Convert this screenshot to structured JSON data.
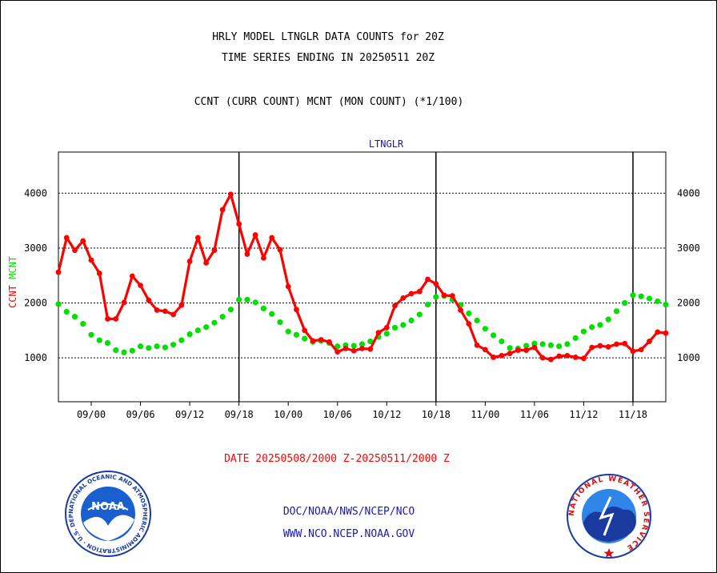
{
  "header": {
    "title_line1": "HRLY MODEL LTNGLR DATA COUNTS for 20Z",
    "title_line2": "TIME SERIES ENDING IN 20250511 20Z",
    "subtitle": "CCNT (CURR COUNT) MCNT (MON COUNT) (*1/100)"
  },
  "footer": {
    "date_range": "DATE 20250508/2000 Z-20250511/2000 Z",
    "credit": "DOC/NOAA/NWS/NCEP/NCO",
    "website": "WWW.NCO.NCEP.NOAA.GOV"
  },
  "logos": {
    "noaa_text": "NOAA",
    "noaa_ring": "NATIONAL OCEANIC AND ATMOSPHERIC ADMINISTRATION · U.S. DEPARTMENT OF COMMERCE ·",
    "nws_ring": "NATIONAL WEATHER SERVICE"
  },
  "colors": {
    "ccnt": "#ff0000",
    "mcnt": "#00e000",
    "frame": "#000000",
    "panel_label": "#1a1aa8"
  },
  "chart_data": {
    "type": "line",
    "panel_title": "LTNGLR",
    "ylabel_series": [
      "CCNT",
      "MCNT"
    ],
    "ylim": [
      200,
      4750
    ],
    "yticks": [
      1000,
      2000,
      3000,
      4000
    ],
    "y_gridlines": true,
    "x_tick_labels": [
      "09/00",
      "09/06",
      "09/12",
      "09/18",
      "10/00",
      "10/06",
      "10/12",
      "10/18",
      "11/00",
      "11/06",
      "11/12",
      "11/18"
    ],
    "x_tick_hours": [
      4,
      10,
      16,
      22,
      28,
      34,
      40,
      46,
      52,
      58,
      64,
      70
    ],
    "xlim_hours": [
      0,
      74
    ],
    "day_boundaries_hours": [
      22,
      46,
      70
    ],
    "series": [
      {
        "name": "CCNT",
        "x_hours": [
          0,
          1,
          2,
          3,
          4,
          5,
          6,
          7,
          8,
          9,
          10,
          11,
          12,
          13,
          14,
          15,
          16,
          17,
          18,
          19,
          20,
          21,
          22,
          23,
          24,
          25,
          26,
          27,
          28,
          29,
          30,
          31,
          32,
          33,
          34,
          35,
          36,
          37,
          38,
          39,
          40,
          41,
          42,
          43,
          44,
          45,
          46,
          47,
          48,
          49,
          50,
          51,
          52,
          53,
          54,
          55,
          56,
          57,
          58,
          59,
          60,
          61,
          62,
          63,
          64,
          65,
          66,
          67,
          68,
          69,
          70,
          71,
          72,
          73,
          74
        ],
        "values": [
          2560,
          3190,
          2960,
          3130,
          2780,
          2540,
          1710,
          1710,
          2010,
          2490,
          2320,
          2050,
          1870,
          1850,
          1790,
          1960,
          2760,
          3190,
          2730,
          2960,
          3700,
          3980,
          3440,
          2890,
          3240,
          2820,
          3190,
          2970,
          2300,
          1880,
          1500,
          1310,
          1330,
          1290,
          1110,
          1170,
          1130,
          1170,
          1160,
          1460,
          1550,
          1950,
          2090,
          2170,
          2210,
          2430,
          2350,
          2140,
          2130,
          1870,
          1620,
          1230,
          1150,
          1010,
          1040,
          1080,
          1140,
          1140,
          1190,
          1000,
          970,
          1030,
          1040,
          1010,
          990,
          1190,
          1220,
          1200,
          1250,
          1260,
          1120,
          1150,
          1300,
          1470,
          1450
        ]
      },
      {
        "name": "MCNT",
        "x_hours": [
          0,
          1,
          2,
          3,
          4,
          5,
          6,
          7,
          8,
          9,
          10,
          11,
          12,
          13,
          14,
          15,
          16,
          17,
          18,
          19,
          20,
          21,
          22,
          23,
          24,
          25,
          26,
          27,
          28,
          29,
          30,
          31,
          32,
          33,
          34,
          35,
          36,
          37,
          38,
          39,
          40,
          41,
          42,
          43,
          44,
          45,
          46,
          47,
          48,
          49,
          50,
          51,
          52,
          53,
          54,
          55,
          56,
          57,
          58,
          59,
          60,
          61,
          62,
          63,
          64,
          65,
          66,
          67,
          68,
          69,
          70,
          71,
          72,
          73,
          74
        ],
        "values": [
          1980,
          1840,
          1750,
          1620,
          1420,
          1320,
          1270,
          1140,
          1100,
          1130,
          1210,
          1180,
          1210,
          1190,
          1240,
          1320,
          1430,
          1500,
          1560,
          1640,
          1750,
          1880,
          2060,
          2060,
          2010,
          1900,
          1800,
          1650,
          1480,
          1420,
          1350,
          1290,
          1310,
          1270,
          1210,
          1230,
          1220,
          1250,
          1300,
          1380,
          1440,
          1550,
          1600,
          1680,
          1790,
          1970,
          2110,
          2130,
          2060,
          1960,
          1810,
          1680,
          1530,
          1410,
          1300,
          1180,
          1170,
          1220,
          1260,
          1250,
          1230,
          1210,
          1250,
          1360,
          1480,
          1560,
          1600,
          1700,
          1850,
          2000,
          2140,
          2120,
          2080,
          2030,
          1970
        ]
      }
    ]
  }
}
